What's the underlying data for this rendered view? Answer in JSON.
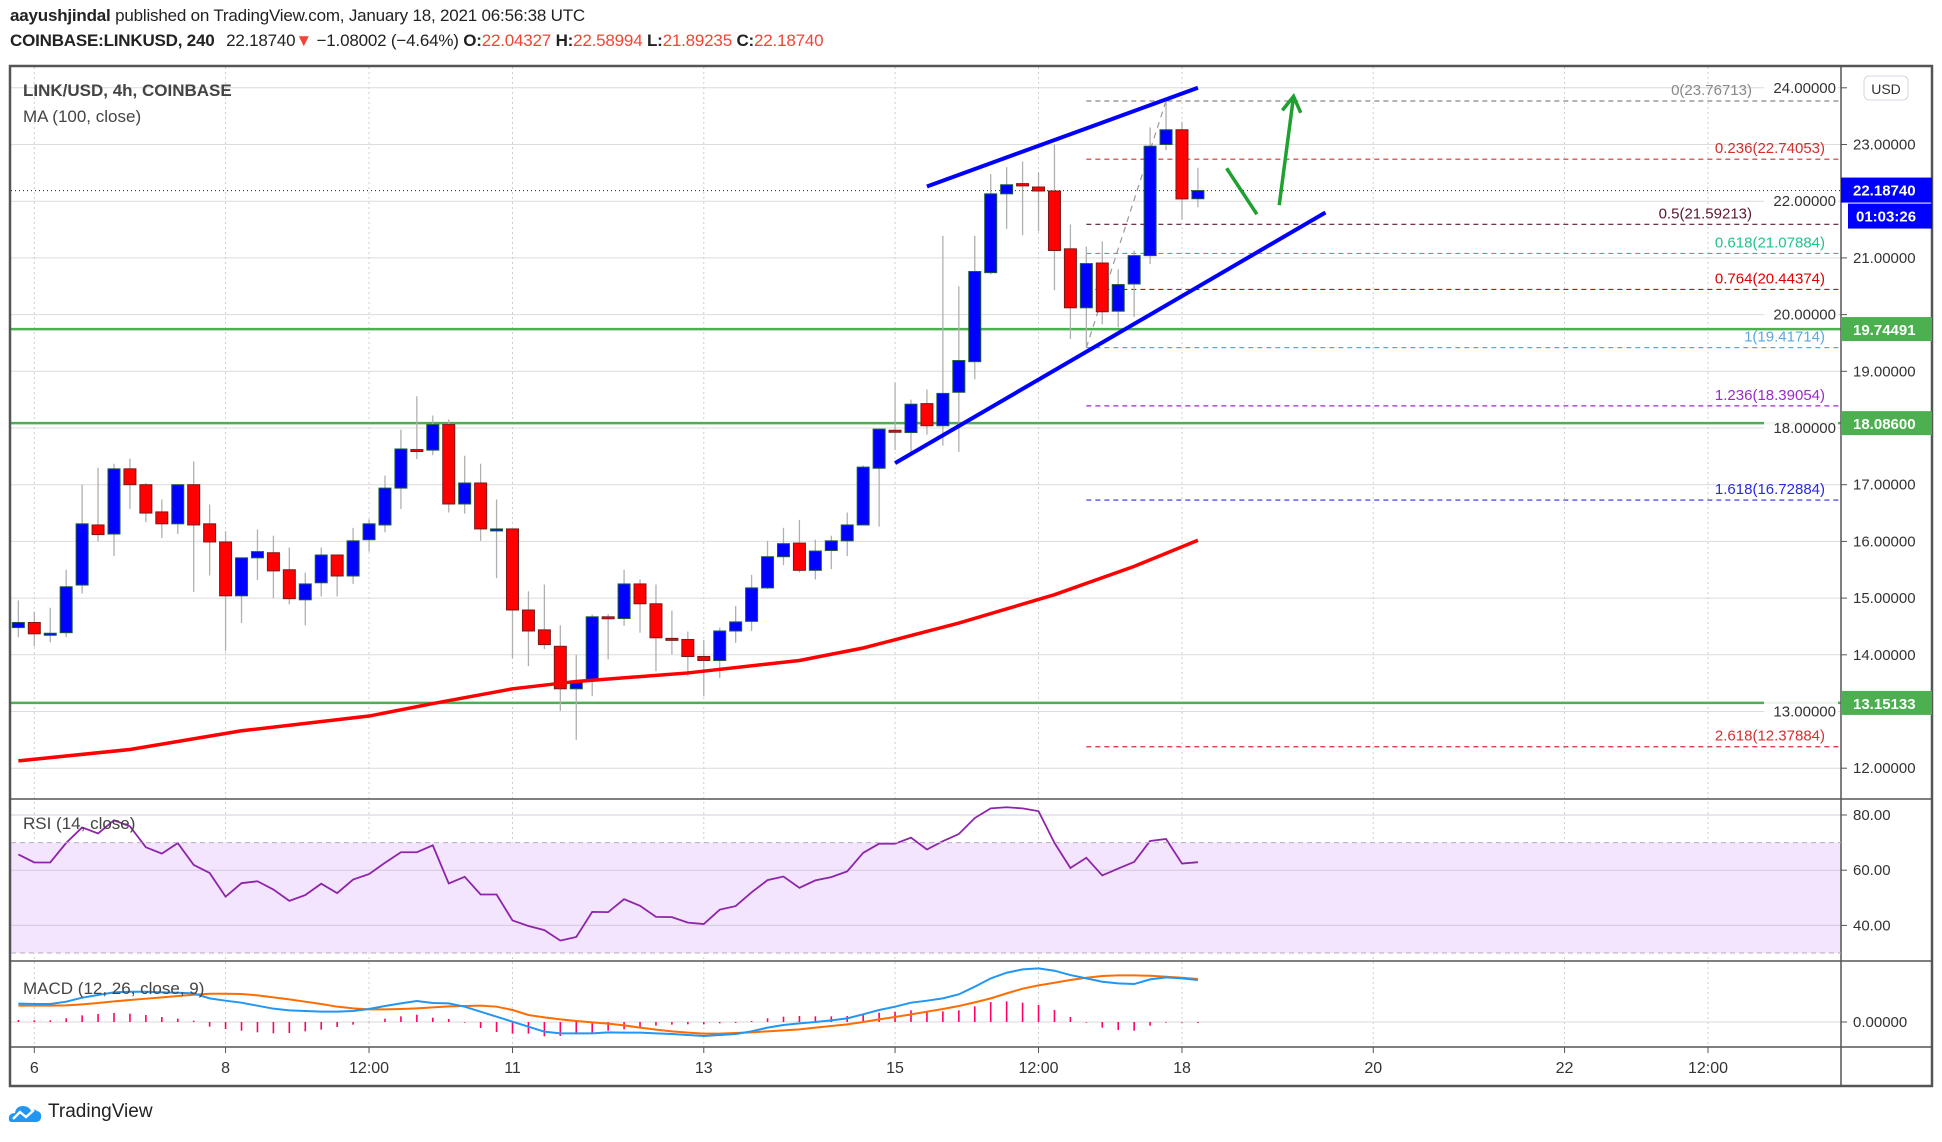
{
  "header": {
    "author": "aayushjindal",
    "published": "published on TradingView.com, January 18, 2021 06:56:38 UTC",
    "symbol": "COINBASE:LINKUSD, 240",
    "last": "22.18740",
    "change_arrow": "▼",
    "change": "−1.08002 (−4.64%)",
    "o_label": "O:",
    "o": "22.04327",
    "h_label": "H:",
    "h": "22.58994",
    "l_label": "L:",
    "l": "21.89235",
    "c_label": "C:",
    "c": "22.18740"
  },
  "legend": {
    "title": "LINK/USD, 4h, COINBASE",
    "ma": "MA (100, close)",
    "rsi": "RSI (14, close)",
    "macd": "MACD (12, 26, close, 9)"
  },
  "currency_button": "USD",
  "footer": {
    "brand": "TradingView",
    "icon": "tradingview-cloud-icon"
  },
  "chart_data": {
    "type": "candlestick",
    "colors": {
      "up": "#0000ff",
      "down": "#ff0000",
      "ma": "#ff0000",
      "trendline": "#0000ff",
      "arrow": "#1fa12f",
      "level": "#4caf50",
      "rsi": "#8e24aa",
      "macd": "#2196f3",
      "signal": "#ff6d00",
      "hist": "#ff0066"
    },
    "candle_fields": [
      "time",
      "open",
      "high",
      "low",
      "close"
    ],
    "candles": [
      [
        "2021-01-05 20:00",
        14.48,
        14.96,
        14.31,
        14.57
      ],
      [
        "2021-01-06 00:00",
        14.57,
        14.76,
        14.15,
        14.37
      ],
      [
        "2021-01-06 04:00",
        14.38,
        14.83,
        14.22,
        14.38
      ],
      [
        "2021-01-06 08:00",
        14.39,
        15.5,
        14.31,
        15.2
      ],
      [
        "2021-01-06 12:00",
        15.23,
        17.0,
        15.08,
        16.31
      ],
      [
        "2021-01-06 16:00",
        16.29,
        17.3,
        16.0,
        16.12
      ],
      [
        "2021-01-06 20:00",
        16.13,
        17.37,
        15.74,
        17.28
      ],
      [
        "2021-01-07 00:00",
        17.28,
        17.46,
        16.57,
        17.0
      ],
      [
        "2021-01-07 04:00",
        17.0,
        17.03,
        16.34,
        16.5
      ],
      [
        "2021-01-07 08:00",
        16.52,
        16.74,
        16.06,
        16.31
      ],
      [
        "2021-01-07 12:00",
        16.31,
        17.0,
        16.13,
        17.0
      ],
      [
        "2021-01-07 16:00",
        17.0,
        17.41,
        15.11,
        16.29
      ],
      [
        "2021-01-07 20:00",
        16.31,
        16.65,
        15.4,
        15.99
      ],
      [
        "2021-01-08 00:00",
        15.99,
        16.18,
        14.07,
        15.04
      ],
      [
        "2021-01-08 04:00",
        15.04,
        15.71,
        14.56,
        15.71
      ],
      [
        "2021-01-08 08:00",
        15.71,
        16.21,
        15.32,
        15.82
      ],
      [
        "2021-01-08 12:00",
        15.8,
        16.1,
        15.0,
        15.48
      ],
      [
        "2021-01-08 16:00",
        15.5,
        15.89,
        14.89,
        14.99
      ],
      [
        "2021-01-08 20:00",
        14.97,
        15.45,
        14.52,
        15.25
      ],
      [
        "2021-01-09 00:00",
        15.27,
        15.89,
        15.03,
        15.76
      ],
      [
        "2021-01-09 04:00",
        15.76,
        15.76,
        15.03,
        15.39
      ],
      [
        "2021-01-09 08:00",
        15.39,
        16.24,
        15.25,
        16.01
      ],
      [
        "2021-01-09 12:00",
        16.03,
        16.39,
        15.82,
        16.31
      ],
      [
        "2021-01-09 16:00",
        16.29,
        17.16,
        16.16,
        16.94
      ],
      [
        "2021-01-09 20:00",
        16.94,
        17.97,
        16.57,
        17.63
      ],
      [
        "2021-01-10 00:00",
        17.62,
        18.56,
        17.45,
        17.6
      ],
      [
        "2021-01-10 04:00",
        17.61,
        18.22,
        17.52,
        18.06
      ],
      [
        "2021-01-10 08:00",
        18.06,
        18.15,
        16.51,
        16.66
      ],
      [
        "2021-01-10 12:00",
        16.66,
        17.51,
        16.49,
        17.03
      ],
      [
        "2021-01-10 16:00",
        17.03,
        17.37,
        16.01,
        16.22
      ],
      [
        "2021-01-10 20:00",
        16.21,
        16.74,
        15.35,
        16.22
      ],
      [
        "2021-01-11 00:00",
        16.22,
        16.22,
        13.94,
        14.79
      ],
      [
        "2021-01-11 04:00",
        14.79,
        15.12,
        13.8,
        14.42
      ],
      [
        "2021-01-11 08:00",
        14.44,
        15.24,
        14.1,
        14.18
      ],
      [
        "2021-01-11 12:00",
        14.15,
        14.52,
        13.01,
        13.4
      ],
      [
        "2021-01-11 16:00",
        13.4,
        14.0,
        12.5,
        13.54
      ],
      [
        "2021-01-11 20:00",
        13.54,
        14.71,
        13.27,
        14.67
      ],
      [
        "2021-01-12 00:00",
        14.67,
        14.72,
        13.92,
        14.64
      ],
      [
        "2021-01-12 04:00",
        14.64,
        15.5,
        14.51,
        15.25
      ],
      [
        "2021-01-12 08:00",
        15.25,
        15.33,
        14.39,
        14.9
      ],
      [
        "2021-01-12 12:00",
        14.9,
        15.24,
        13.71,
        14.3
      ],
      [
        "2021-01-12 16:00",
        14.29,
        14.78,
        14.01,
        14.28
      ],
      [
        "2021-01-12 20:00",
        14.27,
        14.41,
        13.63,
        13.97
      ],
      [
        "2021-01-13 00:00",
        13.97,
        14.26,
        13.27,
        13.9
      ],
      [
        "2021-01-13 04:00",
        13.9,
        14.48,
        13.59,
        14.42
      ],
      [
        "2021-01-13 08:00",
        14.42,
        14.86,
        14.21,
        14.58
      ],
      [
        "2021-01-13 12:00",
        14.59,
        15.41,
        14.42,
        15.18
      ],
      [
        "2021-01-13 16:00",
        15.18,
        16.01,
        15.16,
        15.73
      ],
      [
        "2021-01-13 20:00",
        15.73,
        16.24,
        15.58,
        15.96
      ],
      [
        "2021-01-14 00:00",
        15.97,
        16.38,
        15.45,
        15.49
      ],
      [
        "2021-01-14 04:00",
        15.49,
        16.03,
        15.33,
        15.83
      ],
      [
        "2021-01-14 08:00",
        15.84,
        16.1,
        15.51,
        16.01
      ],
      [
        "2021-01-14 12:00",
        16.01,
        16.51,
        15.74,
        16.29
      ],
      [
        "2021-01-14 16:00",
        16.29,
        17.34,
        16.29,
        17.31
      ],
      [
        "2021-01-14 20:00",
        17.29,
        17.98,
        16.26,
        17.98
      ],
      [
        "2021-01-15 00:00",
        17.96,
        18.8,
        17.61,
        17.95
      ],
      [
        "2021-01-15 04:00",
        17.92,
        18.5,
        17.57,
        18.42
      ],
      [
        "2021-01-15 08:00",
        18.43,
        18.68,
        17.88,
        18.04
      ],
      [
        "2021-01-15 12:00",
        18.04,
        21.39,
        17.69,
        18.61
      ],
      [
        "2021-01-15 16:00",
        18.63,
        20.5,
        17.58,
        19.19
      ],
      [
        "2021-01-15 20:00",
        19.17,
        21.39,
        18.86,
        20.76
      ],
      [
        "2021-01-16 00:00",
        20.74,
        22.48,
        20.71,
        22.13
      ],
      [
        "2021-01-16 04:00",
        22.13,
        22.6,
        21.51,
        22.29
      ],
      [
        "2021-01-16 08:00",
        22.31,
        22.7,
        21.4,
        22.27
      ],
      [
        "2021-01-16 12:00",
        22.25,
        22.51,
        21.47,
        22.18
      ],
      [
        "2021-01-16 16:00",
        22.18,
        23.0,
        20.43,
        21.13
      ],
      [
        "2021-01-16 20:00",
        21.16,
        21.59,
        19.57,
        20.12
      ],
      [
        "2021-01-17 00:00",
        20.12,
        21.2,
        19.417,
        20.9
      ],
      [
        "2021-01-17 04:00",
        20.91,
        21.29,
        19.83,
        20.05
      ],
      [
        "2021-01-17 08:00",
        20.06,
        20.8,
        19.78,
        20.53
      ],
      [
        "2021-01-17 12:00",
        20.54,
        21.13,
        19.96,
        21.04
      ],
      [
        "2021-01-17 16:00",
        21.04,
        23.3,
        20.89,
        22.97
      ],
      [
        "2021-01-17 20:00",
        23.0,
        23.767,
        22.9,
        23.26
      ],
      [
        "2021-01-18 00:00",
        23.26,
        23.4,
        21.67,
        22.04
      ],
      [
        "2021-01-18 04:00",
        22.04327,
        22.58994,
        21.89235,
        22.1874
      ]
    ],
    "ma100": [
      [
        "2021-01-05 20:00",
        12.13
      ],
      [
        "2021-01-07 00:00",
        12.33
      ],
      [
        "2021-01-08 04:00",
        12.66
      ],
      [
        "2021-01-09 12:00",
        12.92
      ],
      [
        "2021-01-10 04:00",
        13.14
      ],
      [
        "2021-01-11 00:00",
        13.4
      ],
      [
        "2021-01-11 16:00",
        13.53
      ],
      [
        "2021-01-12 20:00",
        13.68
      ],
      [
        "2021-01-14 00:00",
        13.9
      ],
      [
        "2021-01-14 16:00",
        14.12
      ],
      [
        "2021-01-15 16:00",
        14.56
      ],
      [
        "2021-01-16 16:00",
        15.06
      ],
      [
        "2021-01-17 12:00",
        15.56
      ],
      [
        "2021-01-18 04:00",
        16.02
      ]
    ],
    "horizontal_levels": [
      {
        "price": 19.74491,
        "label": "19.74491"
      },
      {
        "price": 18.086,
        "label": "18.08600"
      },
      {
        "price": 13.15133,
        "label": "13.15133"
      }
    ],
    "fibonacci": {
      "from": [
        "2021-01-17 00:00",
        19.41714
      ],
      "to": [
        "2021-01-17 20:00",
        23.76713
      ],
      "levels": [
        {
          "label": "0(23.76713)",
          "price": 23.76713,
          "color": "#888888"
        },
        {
          "label": "0.236(22.74053)",
          "price": 22.74053,
          "color": "#d32f2f"
        },
        {
          "label": "0.5(21.59213)",
          "price": 21.59213,
          "color": "#5d1631"
        },
        {
          "label": "0.618(21.07884)",
          "price": 21.07884,
          "color": "#1fc48a"
        },
        {
          "label": "0.764(20.44374)",
          "price": 20.44374,
          "color": "#e00000"
        },
        {
          "label": "1(19.41714)",
          "price": 19.41714,
          "color": "#5aa9dc"
        },
        {
          "label": "1.236(18.39054)",
          "price": 18.39054,
          "color": "#9c27d0"
        },
        {
          "label": "1.618(16.72884)",
          "price": 16.72884,
          "color": "#2929e0"
        },
        {
          "label": "2.618(12.37884)",
          "price": 12.37884,
          "color": "#d32f2f"
        }
      ]
    },
    "trendlines": [
      {
        "from": [
          "2021-01-15 08:00",
          22.26
        ],
        "to": [
          "2021-01-18 04:00",
          24.0
        ]
      },
      {
        "from": [
          "2021-01-15 00:00",
          17.38
        ],
        "to": [
          "2021-01-19 12:00",
          21.8
        ]
      }
    ],
    "arrows": [
      {
        "from": [
          "2021-01-18 11:12",
          22.58
        ],
        "to": [
          "2021-01-18 18:48",
          21.77
        ],
        "head": false
      },
      {
        "from": [
          "2021-01-19 00:24",
          21.93
        ],
        "to": [
          "2021-01-19 04:00",
          23.85
        ],
        "head": true
      }
    ],
    "price_axis": {
      "ticks": [
        "12.00000",
        "13.00000",
        "14.00000",
        "15.00000",
        "16.00000",
        "17.00000",
        "18.00000",
        "19.00000",
        "20.00000",
        "21.00000",
        "22.00000",
        "23.00000",
        "24.00000"
      ],
      "last_price": "22.18740",
      "countdown": "01:03:26"
    },
    "time_axis": [
      {
        "label": "6",
        "time": "2021-01-06 00:00"
      },
      {
        "label": "8",
        "time": "2021-01-08 00:00"
      },
      {
        "label": "12:00",
        "time": "2021-01-09 12:00"
      },
      {
        "label": "11",
        "time": "2021-01-11 00:00"
      },
      {
        "label": "13",
        "time": "2021-01-13 00:00"
      },
      {
        "label": "15",
        "time": "2021-01-15 00:00"
      },
      {
        "label": "12:00",
        "time": "2021-01-16 12:00"
      },
      {
        "label": "18",
        "time": "2021-01-18 00:00"
      },
      {
        "label": "20",
        "time": "2021-01-20 00:00"
      },
      {
        "label": "22",
        "time": "2021-01-22 00:00"
      },
      {
        "label": "12:00",
        "time": "2021-01-23 12:00"
      }
    ],
    "rsi": {
      "ticks": [
        "40.00",
        "60.00",
        "80.00"
      ],
      "band": [
        30,
        70
      ],
      "values": [
        65.7,
        62.8,
        62.8,
        69.9,
        75.5,
        73.3,
        78.1,
        75.9,
        68.3,
        66.0,
        69.8,
        61.9,
        59.0,
        50.4,
        55.3,
        56.0,
        53.0,
        48.9,
        51.0,
        55.1,
        51.7,
        56.6,
        58.6,
        62.7,
        66.5,
        66.5,
        69.0,
        55.2,
        57.6,
        51.2,
        51.2,
        41.8,
        39.8,
        38.3,
        34.5,
        35.8,
        44.9,
        44.8,
        49.5,
        47.1,
        43.1,
        43.0,
        41.0,
        40.5,
        45.7,
        47.0,
        52.0,
        56.4,
        57.7,
        53.6,
        56.3,
        57.5,
        59.6,
        66.3,
        69.6,
        69.6,
        71.8,
        67.5,
        70.5,
        73.1,
        78.9,
        82.4,
        82.8,
        82.4,
        81.4,
        69.9,
        60.8,
        64.5,
        58.1,
        60.6,
        63.0,
        70.6,
        71.3,
        62.4,
        62.9
      ]
    },
    "macd": {
      "ticks": [
        "0.00000"
      ],
      "macd": [
        0.55,
        0.54,
        0.54,
        0.61,
        0.73,
        0.81,
        0.89,
        0.91,
        0.91,
        0.89,
        0.88,
        0.86,
        0.71,
        0.64,
        0.58,
        0.49,
        0.4,
        0.35,
        0.33,
        0.31,
        0.31,
        0.33,
        0.39,
        0.48,
        0.56,
        0.63,
        0.57,
        0.56,
        0.46,
        0.31,
        0.16,
        0.01,
        -0.14,
        -0.29,
        -0.34,
        -0.34,
        -0.34,
        -0.31,
        -0.32,
        -0.32,
        -0.34,
        -0.36,
        -0.39,
        -0.42,
        -0.39,
        -0.36,
        -0.28,
        -0.17,
        -0.09,
        -0.04,
        0.0,
        0.05,
        0.11,
        0.23,
        0.36,
        0.46,
        0.58,
        0.64,
        0.71,
        0.83,
        1.06,
        1.31,
        1.48,
        1.58,
        1.61,
        1.54,
        1.41,
        1.31,
        1.21,
        1.16,
        1.14,
        1.28,
        1.34,
        1.31,
        1.26
      ],
      "signal": [
        0.49,
        0.49,
        0.49,
        0.5,
        0.53,
        0.57,
        0.62,
        0.66,
        0.7,
        0.74,
        0.78,
        0.82,
        0.85,
        0.85,
        0.84,
        0.8,
        0.74,
        0.68,
        0.61,
        0.54,
        0.46,
        0.41,
        0.38,
        0.38,
        0.39,
        0.41,
        0.44,
        0.47,
        0.48,
        0.49,
        0.46,
        0.36,
        0.21,
        0.14,
        0.08,
        0.03,
        -0.01,
        -0.05,
        -0.1,
        -0.17,
        -0.23,
        -0.28,
        -0.32,
        -0.35,
        -0.35,
        -0.33,
        -0.31,
        -0.28,
        -0.25,
        -0.22,
        -0.17,
        -0.12,
        -0.07,
        0.0,
        0.08,
        0.15,
        0.23,
        0.31,
        0.39,
        0.48,
        0.59,
        0.71,
        0.86,
        1.0,
        1.1,
        1.18,
        1.26,
        1.33,
        1.38,
        1.4,
        1.4,
        1.39,
        1.36,
        1.33,
        1.29
      ]
    }
  }
}
